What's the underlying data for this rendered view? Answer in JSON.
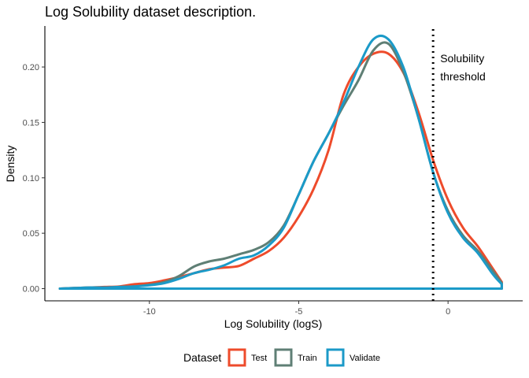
{
  "chart_data": {
    "type": "line",
    "title": "Log Solubility dataset description.",
    "xlabel": "Log Solubility (logS)",
    "ylabel": "Density",
    "xlim": [
      -13.5,
      2.5
    ],
    "ylim": [
      -0.011,
      0.237
    ],
    "xticks": [
      -10,
      -5,
      0
    ],
    "xtick_labels": [
      "-10",
      "-5",
      "0"
    ],
    "yticks": [
      0.0,
      0.05,
      0.1,
      0.15,
      0.2
    ],
    "ytick_labels": [
      "0.00",
      "0.05",
      "0.10",
      "0.15",
      "0.20"
    ],
    "grid": false,
    "legend_title": "Dataset",
    "legend_position": "bottom",
    "threshold": {
      "x": -0.5,
      "style": "dotted",
      "label_lines": [
        "Solubility",
        "threshold"
      ]
    },
    "series": [
      {
        "name": "Test",
        "color": "#EE4B2B",
        "points": [
          [
            -13,
            0.0
          ],
          [
            -12.5,
            0.0005
          ],
          [
            -12,
            0.001
          ],
          [
            -11.5,
            0.0015
          ],
          [
            -11,
            0.002
          ],
          [
            -10.5,
            0.004
          ],
          [
            -10,
            0.005
          ],
          [
            -9.5,
            0.0075
          ],
          [
            -9,
            0.0105
          ],
          [
            -8.5,
            0.014
          ],
          [
            -8,
            0.0175
          ],
          [
            -7.5,
            0.019
          ],
          [
            -7,
            0.0205
          ],
          [
            -6.5,
            0.027
          ],
          [
            -6,
            0.034
          ],
          [
            -5.5,
            0.046
          ],
          [
            -5,
            0.065
          ],
          [
            -4.5,
            0.09
          ],
          [
            -4,
            0.125
          ],
          [
            -3.5,
            0.175
          ],
          [
            -3,
            0.2
          ],
          [
            -2.5,
            0.212
          ],
          [
            -2,
            0.212
          ],
          [
            -1.5,
            0.195
          ],
          [
            -1,
            0.16
          ],
          [
            -0.5,
            0.116
          ],
          [
            0,
            0.08
          ],
          [
            0.5,
            0.055
          ],
          [
            1,
            0.038
          ],
          [
            1.5,
            0.018
          ],
          [
            1.8,
            0.006
          ]
        ]
      },
      {
        "name": "Train",
        "color": "#5F7F75",
        "points": [
          [
            -13,
            0.0
          ],
          [
            -12.5,
            0.0005
          ],
          [
            -12,
            0.001
          ],
          [
            -11.5,
            0.001
          ],
          [
            -11,
            0.0015
          ],
          [
            -10.5,
            0.002
          ],
          [
            -10,
            0.0035
          ],
          [
            -9.5,
            0.006
          ],
          [
            -9,
            0.0115
          ],
          [
            -8.5,
            0.02
          ],
          [
            -8,
            0.0245
          ],
          [
            -7.5,
            0.027
          ],
          [
            -7,
            0.031
          ],
          [
            -6.5,
            0.035
          ],
          [
            -6,
            0.042
          ],
          [
            -5.5,
            0.057
          ],
          [
            -5,
            0.085
          ],
          [
            -4.5,
            0.115
          ],
          [
            -4,
            0.14
          ],
          [
            -3.5,
            0.165
          ],
          [
            -3,
            0.188
          ],
          [
            -2.5,
            0.215
          ],
          [
            -2,
            0.221
          ],
          [
            -1.5,
            0.196
          ],
          [
            -1,
            0.155
          ],
          [
            -0.5,
            0.105
          ],
          [
            0,
            0.07
          ],
          [
            0.5,
            0.048
          ],
          [
            1,
            0.034
          ],
          [
            1.5,
            0.016
          ],
          [
            1.8,
            0.005
          ]
        ]
      },
      {
        "name": "Validate",
        "color": "#1B9AC8",
        "points": [
          [
            -13,
            0.0
          ],
          [
            -12.5,
            0.0005
          ],
          [
            -12,
            0.001
          ],
          [
            -11.5,
            0.001
          ],
          [
            -11,
            0.0015
          ],
          [
            -10.5,
            0.002
          ],
          [
            -10,
            0.003
          ],
          [
            -9.5,
            0.005
          ],
          [
            -9,
            0.009
          ],
          [
            -8.5,
            0.014
          ],
          [
            -8,
            0.017
          ],
          [
            -7.5,
            0.021
          ],
          [
            -7,
            0.027
          ],
          [
            -6.5,
            0.03
          ],
          [
            -6,
            0.039
          ],
          [
            -5.5,
            0.055
          ],
          [
            -5,
            0.085
          ],
          [
            -4.5,
            0.115
          ],
          [
            -4,
            0.14
          ],
          [
            -3.5,
            0.168
          ],
          [
            -3,
            0.2
          ],
          [
            -2.5,
            0.225
          ],
          [
            -2,
            0.225
          ],
          [
            -1.5,
            0.2
          ],
          [
            -1,
            0.155
          ],
          [
            -0.5,
            0.105
          ],
          [
            0,
            0.068
          ],
          [
            0.5,
            0.046
          ],
          [
            1,
            0.032
          ],
          [
            1.5,
            0.013
          ],
          [
            1.8,
            0.004
          ]
        ]
      }
    ]
  }
}
